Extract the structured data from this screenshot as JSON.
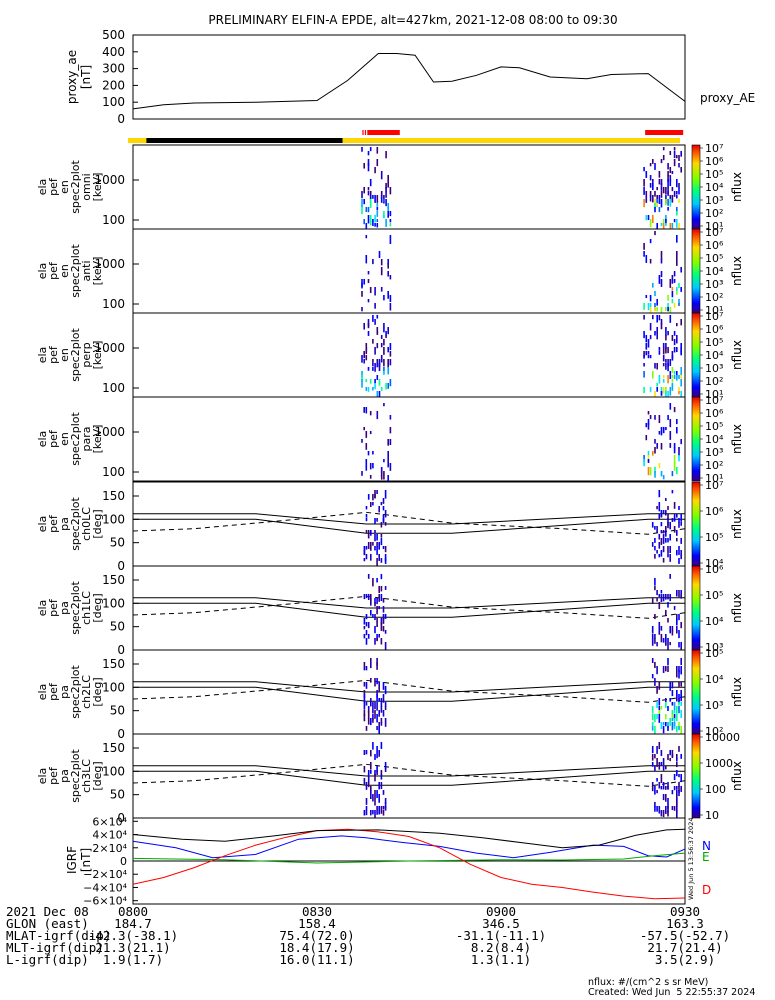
{
  "title": "PRELIMINARY ELFIN-A EPDE, alt=427km, 2021-12-08 08:00 to 09:30",
  "proxy_ae": {
    "ylabel_lines": [
      "proxy_ae",
      "[nT]"
    ],
    "legend": "proxy_AE",
    "yticks": [
      "500",
      "400",
      "300",
      "200",
      "100",
      "0"
    ],
    "chart_data": {
      "type": "line",
      "x_unit": "minutes after 08:00",
      "x": [
        0,
        5,
        10,
        20,
        30,
        35,
        40,
        43,
        46,
        49,
        52,
        56,
        60,
        63,
        68,
        74,
        78,
        84,
        90
      ],
      "values": [
        60,
        85,
        95,
        100,
        110,
        230,
        390,
        390,
        380,
        220,
        225,
        260,
        310,
        305,
        250,
        240,
        265,
        270,
        105
      ],
      "ylim": [
        0,
        500
      ]
    }
  },
  "orbit_bar": {
    "segments": [
      {
        "x0": 0,
        "x1": 3,
        "color": "#FFD700"
      },
      {
        "x0": 3,
        "x1": 35,
        "color": "#000000"
      },
      {
        "x0": 35,
        "x1": 90,
        "color": "#FFD700"
      }
    ],
    "markers": [
      {
        "x0": 37.4,
        "x1": 37.6,
        "color": "#FF0000"
      },
      {
        "x0": 37.8,
        "x1": 38.0,
        "color": "#FF0000"
      },
      {
        "x0": 38.2,
        "x1": 43.5,
        "color": "#FF0000"
      },
      {
        "x0": 83.5,
        "x1": 89.7,
        "color": "#FF0000"
      }
    ]
  },
  "energy_panels": [
    {
      "ylabel_lines": [
        "ela",
        "pef",
        "en",
        "spec2plot",
        "omni",
        "[keV]"
      ],
      "yticks": [
        "1000",
        "100"
      ],
      "colorbar": {
        "title": "nflux",
        "ticks": [
          "10⁷",
          "10⁶",
          "10⁵",
          "10⁴",
          "10³",
          "10²",
          "10¹"
        ]
      }
    },
    {
      "ylabel_lines": [
        "ela",
        "pef",
        "en",
        "spec2plot",
        "anti",
        "[keV]"
      ],
      "yticks": [
        "1000",
        "100"
      ],
      "colorbar": {
        "title": "nflux",
        "ticks": [
          "10⁷",
          "10⁶",
          "10⁵",
          "10⁴",
          "10³",
          "10²",
          "10¹"
        ]
      }
    },
    {
      "ylabel_lines": [
        "ela",
        "pef",
        "en",
        "spec2plot",
        "perp",
        "[keV]"
      ],
      "yticks": [
        "1000",
        "100"
      ],
      "colorbar": {
        "title": "nflux",
        "ticks": [
          "10⁷",
          "10⁶",
          "10⁵",
          "10⁴",
          "10³",
          "10²",
          "10¹"
        ]
      }
    },
    {
      "ylabel_lines": [
        "ela",
        "pef",
        "en",
        "spec2plot",
        "para",
        "[keV]"
      ],
      "yticks": [
        "1000",
        "100"
      ],
      "colorbar": {
        "title": "nflux",
        "ticks": [
          "10⁷",
          "10⁶",
          "10⁵",
          "10⁴",
          "10³",
          "10²",
          "10¹"
        ]
      }
    }
  ],
  "pitch_panels": [
    {
      "ylabel_lines": [
        "ela",
        "pef",
        "pa",
        "spec2plot",
        "ch0LC",
        "[deg]"
      ],
      "yticks": [
        "150",
        "100",
        "50",
        "0"
      ],
      "colorbar": {
        "title": "nflux",
        "ticks": [
          "10⁷",
          "10⁶",
          "10⁵",
          "10⁴"
        ]
      }
    },
    {
      "ylabel_lines": [
        "ela",
        "pef",
        "pa",
        "spec2plot",
        "ch1LC",
        "[deg]"
      ],
      "yticks": [
        "150",
        "100",
        "50",
        "0"
      ],
      "colorbar": {
        "title": "nflux",
        "ticks": [
          "10⁶",
          "10⁵",
          "10⁴",
          "10³"
        ]
      }
    },
    {
      "ylabel_lines": [
        "ela",
        "pef",
        "pa",
        "spec2plot",
        "ch2LC",
        "[deg]"
      ],
      "yticks": [
        "150",
        "100",
        "50",
        "0"
      ],
      "colorbar": {
        "title": "nflux",
        "ticks": [
          "10⁵",
          "10⁴",
          "10³",
          "10²"
        ]
      }
    },
    {
      "ylabel_lines": [
        "ela",
        "pef",
        "pa",
        "spec2plot",
        "ch3LC",
        "[deg]"
      ],
      "yticks": [
        "150",
        "100",
        "50",
        "0"
      ],
      "colorbar": {
        "title": "nflux",
        "ticks": [
          "10000",
          "1000",
          "100",
          "10"
        ]
      }
    }
  ],
  "igrf": {
    "ylabel_lines": [
      "IGRF",
      "[nT]"
    ],
    "yticks": [
      "6×10⁴",
      "4×10⁴",
      "2×10⁴",
      "0",
      "−2×10⁴",
      "−4×10⁴",
      "−6×10⁴"
    ],
    "legend": [
      "N",
      "E",
      "D"
    ],
    "side_note": "Wed Jun  5 13:56:37 2024",
    "chart_data": {
      "type": "line",
      "x_unit": "minutes after 08:00",
      "ylim": [
        -65000,
        65000
      ],
      "series": [
        {
          "name": "N",
          "color": "#0000FF",
          "x": [
            0,
            7,
            13,
            20,
            27,
            34,
            38,
            44,
            50,
            56,
            62,
            68,
            75,
            80,
            84,
            87,
            90
          ],
          "values": [
            30000,
            20000,
            5000,
            10000,
            33000,
            38000,
            35000,
            28000,
            22000,
            12000,
            5000,
            13000,
            24000,
            22000,
            8000,
            6000,
            18000
          ]
        },
        {
          "name": "E",
          "color": "#00AA00",
          "x": [
            0,
            15,
            30,
            45,
            60,
            70,
            80,
            85,
            90
          ],
          "values": [
            4000,
            2000,
            -3000,
            0,
            2000,
            1500,
            3000,
            8000,
            12000
          ]
        },
        {
          "name": "D",
          "color": "#FF0000",
          "x": [
            0,
            5,
            10,
            15,
            20,
            25,
            30,
            35,
            40,
            45,
            50,
            55,
            60,
            65,
            70,
            75,
            80,
            85,
            90
          ],
          "values": [
            -35000,
            -25000,
            -10000,
            8000,
            24000,
            36000,
            46000,
            48000,
            44000,
            37000,
            20000,
            -5000,
            -25000,
            -35000,
            -40000,
            -47000,
            -53000,
            -57000,
            -56000
          ]
        },
        {
          "name": "",
          "color": "#000000",
          "x": [
            0,
            8,
            15,
            23,
            30,
            40,
            50,
            57,
            64,
            70,
            76,
            82,
            87,
            90
          ],
          "values": [
            40000,
            33000,
            30000,
            38000,
            46000,
            47000,
            42000,
            35000,
            27000,
            20000,
            24000,
            39000,
            47000,
            48000
          ]
        }
      ]
    }
  },
  "time_axis": {
    "labels": [
      "0800",
      "0830",
      "0900",
      "0930"
    ],
    "minutes": [
      0,
      30,
      60,
      90
    ]
  },
  "footer": {
    "rows": [
      {
        "label": "2021 Dec 08",
        "values": [
          "0800",
          "0830",
          "0900",
          "0930"
        ]
      },
      {
        "label": "GLON (east)",
        "values": [
          "184.7",
          "158.4",
          "346.5",
          "163.3"
        ]
      },
      {
        "label": "MLAT-igrf(dip)",
        "values": [
          "-42.3(-38.1)",
          "75.4(72.0)",
          "-31.1(-11.1)",
          "-57.5(-52.7)"
        ]
      },
      {
        "label": "MLT-igrf(dip)",
        "values": [
          "21.3(21.1)",
          "18.4(17.9)",
          "8.2(8.4)",
          "21.7(21.4)"
        ]
      },
      {
        "label": "L-igrf(dip)",
        "values": [
          "1.9(1.7)",
          "16.0(11.1)",
          "1.3(1.1)",
          "3.5(2.9)"
        ]
      }
    ],
    "note_lines": [
      "nflux: #/(cm^2 s sr MeV)",
      "Created: Wed Jun  5 22:55:37 2024"
    ]
  }
}
